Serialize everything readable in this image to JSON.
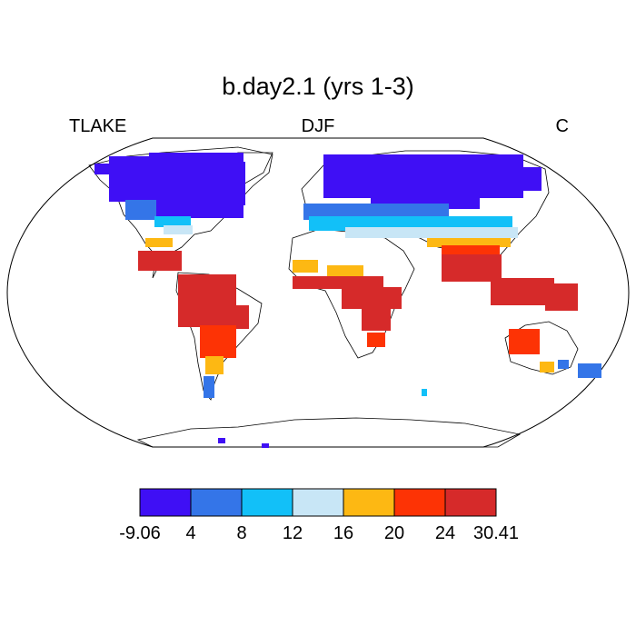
{
  "title": "b.day2.1 (yrs 1-3)",
  "left_label": "TLAKE",
  "center_label": "DJF",
  "right_label": "C",
  "colorbar": {
    "colors": [
      "#3f0ff5",
      "#3475e8",
      "#12c0f8",
      "#c8e6f6",
      "#fdb813",
      "#fd3305",
      "#d62a2a"
    ],
    "labels": [
      "-9.06",
      "4",
      "8",
      "12",
      "16",
      "20",
      "24",
      "30.41"
    ]
  },
  "map": {
    "projection": "robinson",
    "regions": [
      {
        "name": "north-america-arctic",
        "color": "#3f0ff5"
      },
      {
        "name": "eurasia-north",
        "color": "#3f0ff5"
      },
      {
        "name": "us-midlatitude",
        "color": "#12c0f8"
      },
      {
        "name": "mediterranean-asia",
        "color": "#12c0f8"
      },
      {
        "name": "tropics-americas",
        "color": "#d62a2a"
      },
      {
        "name": "tropics-africa",
        "color": "#d62a2a"
      },
      {
        "name": "south-asia",
        "color": "#fd3305"
      },
      {
        "name": "australia",
        "color": "#fd3305"
      }
    ]
  }
}
